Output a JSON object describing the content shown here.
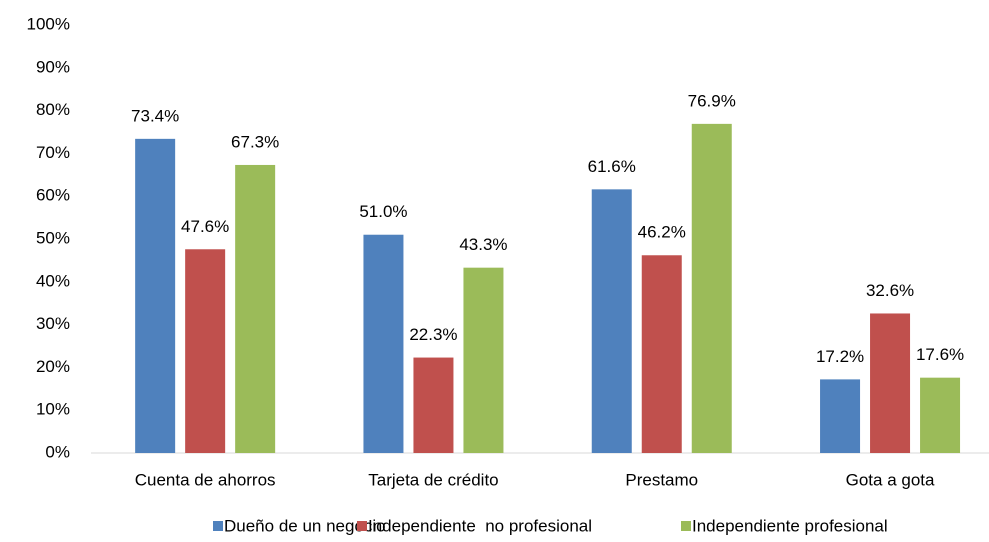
{
  "chart_data": {
    "type": "bar",
    "categories": [
      "Cuenta de ahorros",
      "Tarjeta de crédito",
      "Prestamo",
      "Gota a gota"
    ],
    "series": [
      {
        "name": "Dueño de un negocio",
        "color": "#4f81bd",
        "values": [
          73.4,
          51.0,
          61.6,
          17.2
        ],
        "value_labels": [
          "73.4%",
          "51.0%",
          "61.6%",
          "17.2%"
        ]
      },
      {
        "name": "Independiente  no profesional",
        "color": "#c0504d",
        "values": [
          47.6,
          22.3,
          46.2,
          32.6
        ],
        "value_labels": [
          "47.6%",
          "22.3%",
          "46.2%",
          "32.6%"
        ]
      },
      {
        "name": "Independiente profesional",
        "color": "#9bbb59",
        "values": [
          67.3,
          43.3,
          76.9,
          17.6
        ],
        "value_labels": [
          "67.3%",
          "43.3%",
          "76.9%",
          "17.6%"
        ]
      }
    ],
    "ylim": [
      0,
      100
    ],
    "yticks": [
      {
        "value": 0,
        "label": "0%"
      },
      {
        "value": 10,
        "label": "10%"
      },
      {
        "value": 20,
        "label": "20%"
      },
      {
        "value": 30,
        "label": "30%"
      },
      {
        "value": 40,
        "label": "40%"
      },
      {
        "value": 50,
        "label": "50%"
      },
      {
        "value": 60,
        "label": "60%"
      },
      {
        "value": 70,
        "label": "70%"
      },
      {
        "value": 80,
        "label": "80%"
      },
      {
        "value": 90,
        "label": "90%"
      },
      {
        "value": 100,
        "label": "100%"
      }
    ],
    "legend": "bottom",
    "grid": false
  }
}
